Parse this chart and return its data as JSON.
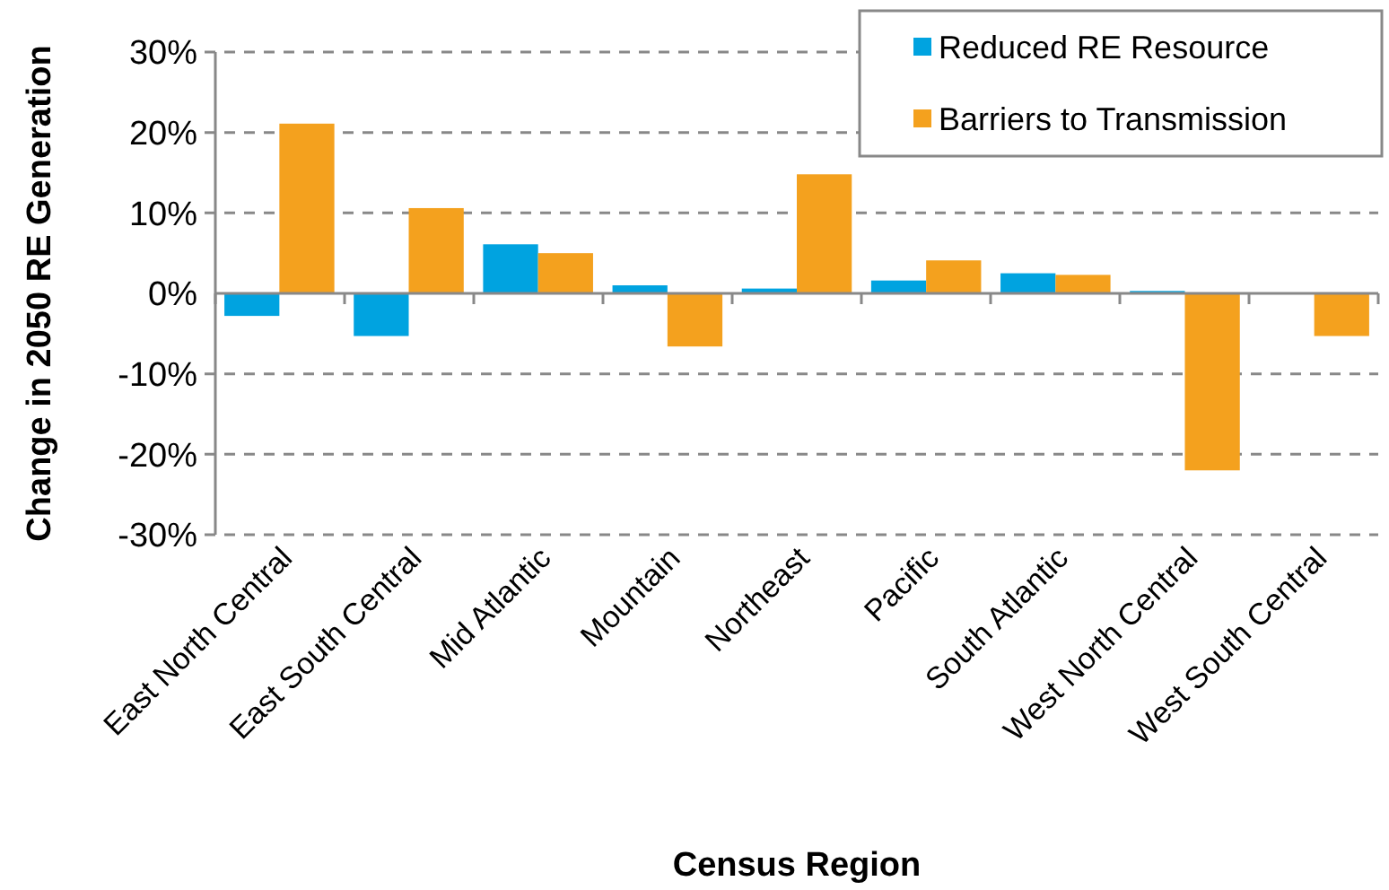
{
  "chart_data": {
    "type": "bar",
    "xlabel": "Census Region",
    "ylabel": "Change in 2050 RE Generation",
    "categories": [
      "East North Central",
      "East South Central",
      "Mid Atlantic",
      "Mountain",
      "Northeast",
      "Pacific",
      "South Atlantic",
      "West North Central",
      "West South Central"
    ],
    "series": [
      {
        "name": "Reduced RE Resource",
        "color": "#00a3e0",
        "values": [
          -2.8,
          -5.3,
          6.1,
          1.0,
          0.6,
          1.6,
          2.5,
          0.3,
          0
        ]
      },
      {
        "name": "Barriers to Transmission",
        "color": "#f4a11e",
        "values": [
          21.1,
          10.6,
          5.0,
          -6.6,
          14.8,
          4.1,
          2.3,
          -22.0,
          -5.3
        ]
      }
    ],
    "ylim": [
      -30,
      30
    ],
    "yticks": [
      {
        "value": -30,
        "label": "-30%"
      },
      {
        "value": -20,
        "label": "-20%"
      },
      {
        "value": -10,
        "label": "-10%"
      },
      {
        "value": 0,
        "label": "0%"
      },
      {
        "value": 10,
        "label": "10%"
      },
      {
        "value": 20,
        "label": "20%"
      },
      {
        "value": 30,
        "label": "30%"
      }
    ],
    "grid": "y",
    "legend": "top right"
  }
}
